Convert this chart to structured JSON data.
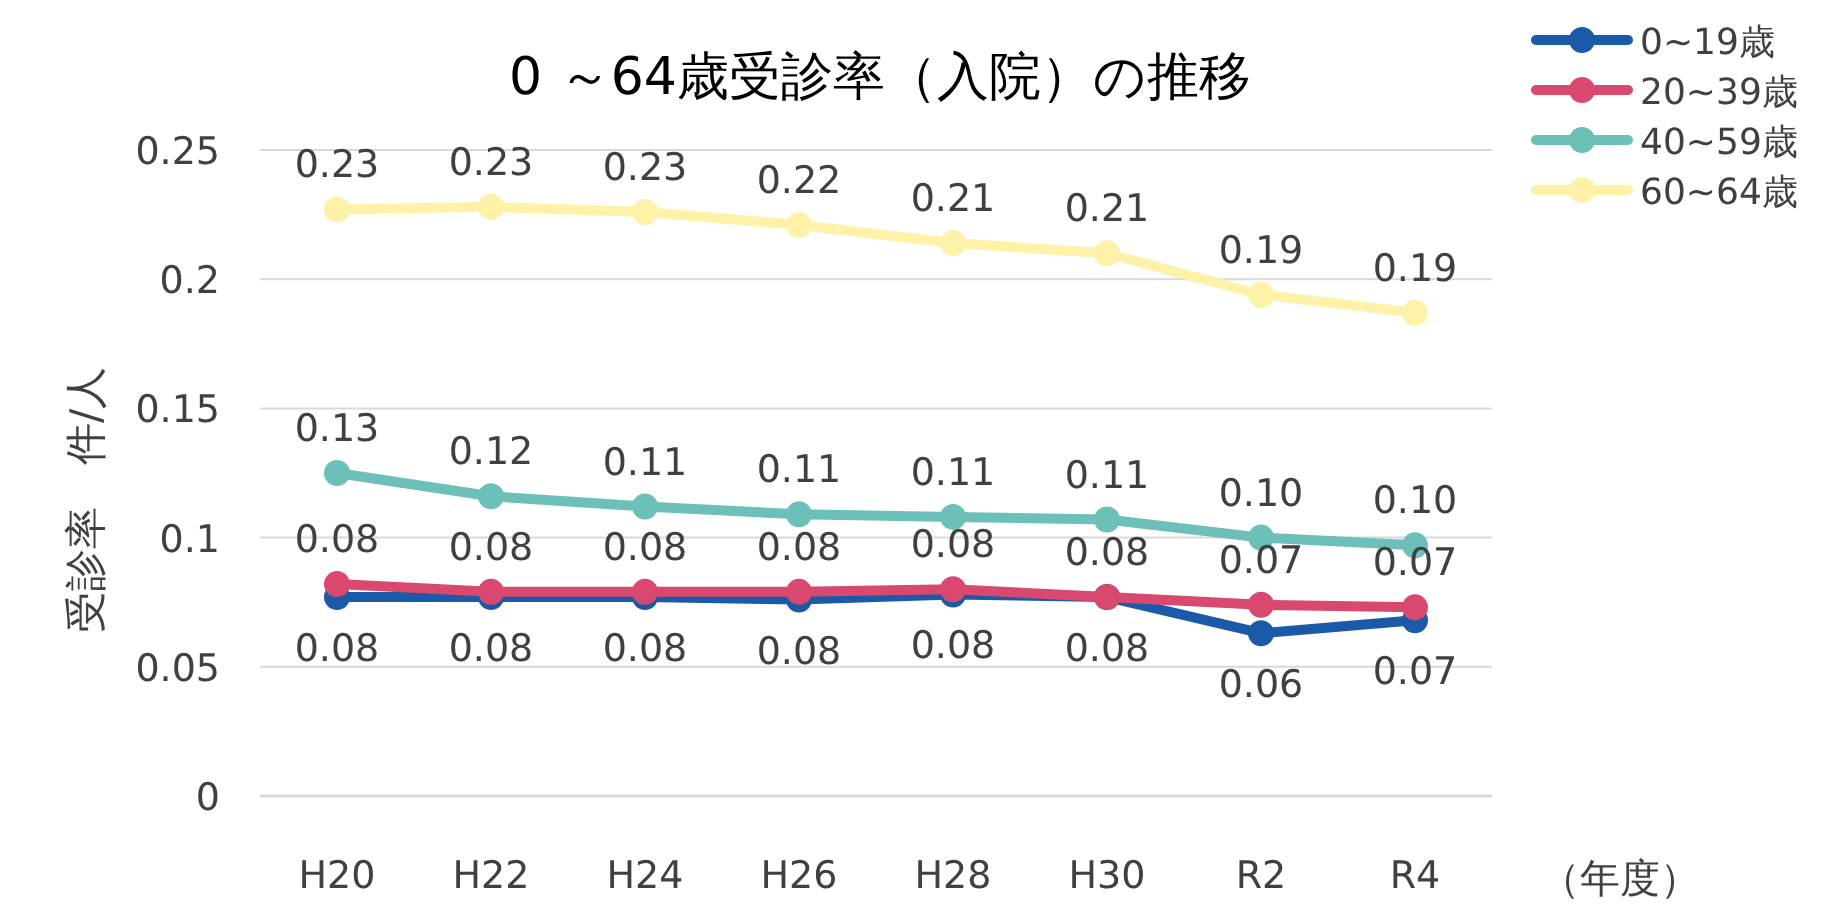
{
  "chart_data": {
    "type": "line",
    "title": "0 ～64歳受診率（入院）の推移",
    "ylabel": "受診率　件/人",
    "xlabel": "（年度）",
    "categories": [
      "H20",
      "H22",
      "H24",
      "H26",
      "H28",
      "H30",
      "R2",
      "R4"
    ],
    "ylim": [
      0,
      0.25
    ],
    "yticks": [
      0,
      0.05,
      0.1,
      0.15,
      0.2,
      0.25
    ],
    "grid": "y",
    "legend": "top right",
    "marker": "circle",
    "line_style": "solid",
    "series": [
      {
        "name": "0~19歳",
        "color": "#1a5aa8",
        "values": [
          0.077,
          0.077,
          0.077,
          0.076,
          0.078,
          0.077,
          0.063,
          0.068
        ],
        "value_labels": [
          "0.08",
          "0.08",
          "0.08",
          "0.08",
          "0.08",
          "0.08",
          "0.06",
          "0.07"
        ]
      },
      {
        "name": "20~39歳",
        "color": "#d9486e",
        "values": [
          0.082,
          0.079,
          0.079,
          0.079,
          0.08,
          0.077,
          0.074,
          0.073
        ],
        "value_labels": [
          "0.08",
          "0.08",
          "0.08",
          "0.08",
          "0.08",
          "0.08",
          "0.07",
          "0.07"
        ]
      },
      {
        "name": "40~59歳",
        "color": "#6cc0b8",
        "values": [
          0.125,
          0.116,
          0.112,
          0.109,
          0.108,
          0.107,
          0.1,
          0.097
        ],
        "value_labels": [
          "0.13",
          "0.12",
          "0.11",
          "0.11",
          "0.11",
          "0.11",
          "0.10",
          "0.10"
        ]
      },
      {
        "name": "60~64歳",
        "color": "#fdf2a8",
        "values": [
          0.227,
          0.228,
          0.226,
          0.221,
          0.214,
          0.21,
          0.194,
          0.187
        ],
        "value_labels": [
          "0.23",
          "0.23",
          "0.23",
          "0.22",
          "0.21",
          "0.21",
          "0.19",
          "0.19"
        ]
      }
    ]
  }
}
